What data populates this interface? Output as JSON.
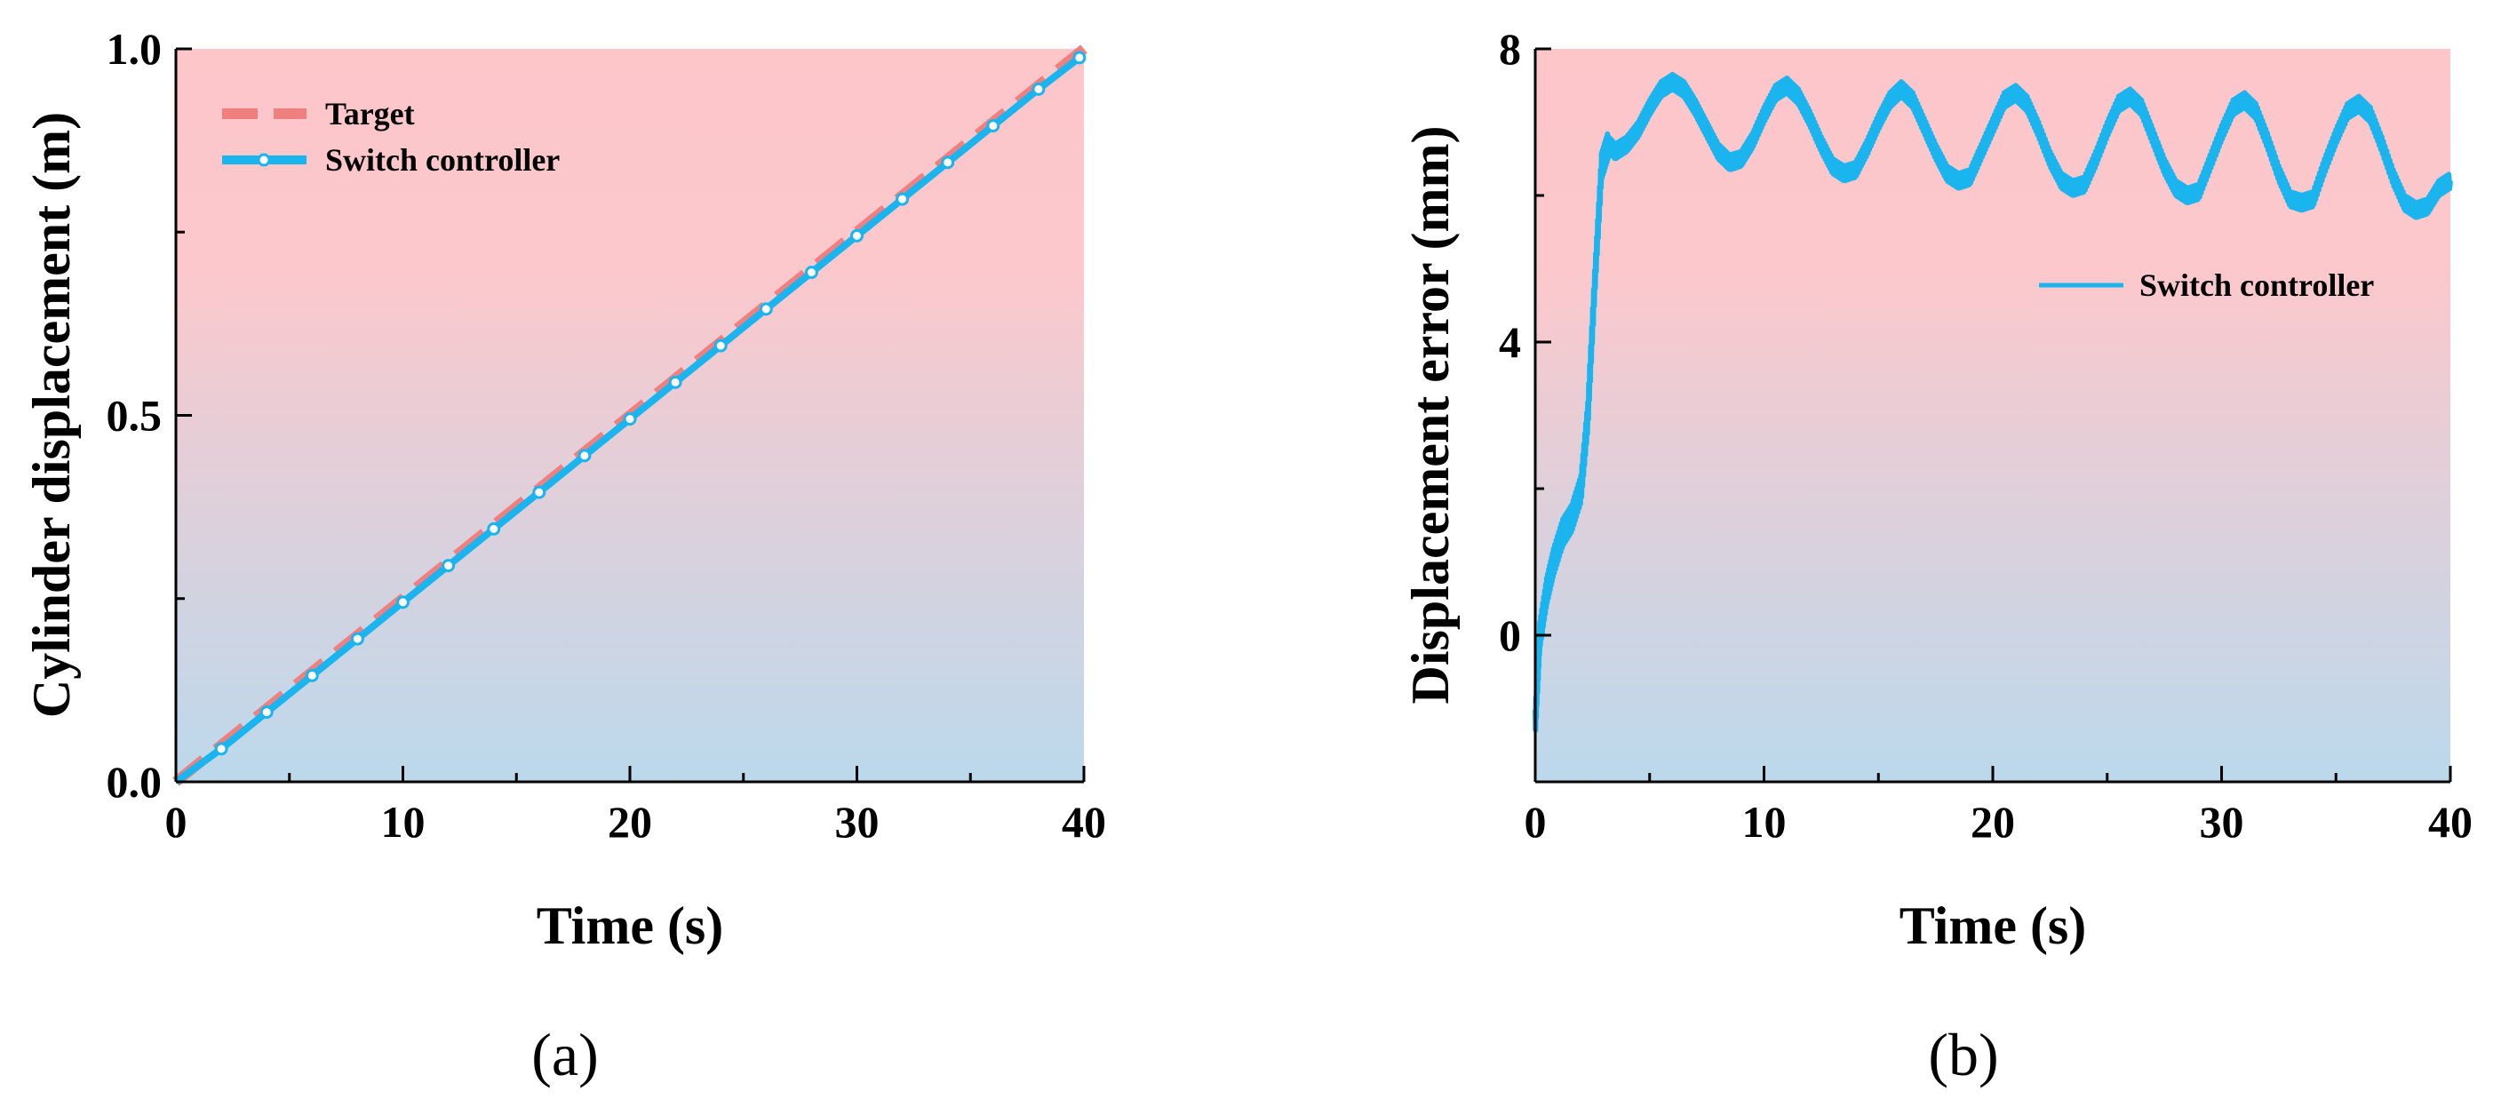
{
  "chart_data": [
    {
      "type": "line",
      "panel_label": "(a)",
      "xlabel": "Time (s)",
      "ylabel": "Cylinder displacement (m)",
      "xlim": [
        0,
        40
      ],
      "ylim": [
        0,
        1.0
      ],
      "x_ticks": [
        0,
        10,
        20,
        30,
        40
      ],
      "y_ticks": [
        0.0,
        0.5,
        1.0
      ],
      "x_tick_labels": [
        "0",
        "10",
        "20",
        "30",
        "40"
      ],
      "y_tick_labels": [
        "0.0",
        "0.5",
        "1.0"
      ],
      "grid": false,
      "legend_position": "top-left",
      "background_gradient": [
        "#fdc6c9",
        "#bbd9ec"
      ],
      "series": [
        {
          "name": "Target",
          "color": "#f08080",
          "style": "dashed",
          "x": [
            0,
            40
          ],
          "y": [
            0.0,
            1.0
          ]
        },
        {
          "name": "Switch controller",
          "color": "#1ab4ef",
          "style": "solid-markers",
          "x": [
            0,
            2,
            4,
            6,
            8,
            10,
            12,
            14,
            16,
            18,
            20,
            22,
            24,
            26,
            28,
            30,
            32,
            34,
            36,
            38,
            39.8
          ],
          "y": [
            0.0,
            0.045,
            0.095,
            0.145,
            0.195,
            0.245,
            0.295,
            0.345,
            0.395,
            0.445,
            0.495,
            0.545,
            0.595,
            0.645,
            0.695,
            0.745,
            0.795,
            0.845,
            0.895,
            0.945,
            0.988
          ]
        }
      ]
    },
    {
      "type": "line",
      "panel_label": "(b)",
      "xlabel": "Time (s)",
      "ylabel": "Displacement error (mm)",
      "xlim": [
        0,
        40
      ],
      "ylim": [
        -2,
        8
      ],
      "x_ticks": [
        0,
        10,
        20,
        30,
        40
      ],
      "y_ticks": [
        0,
        4,
        8
      ],
      "x_tick_labels": [
        "0",
        "10",
        "20",
        "30",
        "40"
      ],
      "y_tick_labels": [
        "0",
        "4",
        "8"
      ],
      "grid": false,
      "legend_position": "right",
      "background_gradient": [
        "#fdc6c9",
        "#bbd9ec"
      ],
      "series": [
        {
          "name": "Switch controller",
          "color": "#1ab4ef",
          "style": "solid",
          "x": [
            0,
            0.2,
            0.5,
            0.8,
            1.2,
            1.6,
            2.0,
            2.3,
            2.6,
            2.9,
            3.2,
            3.5,
            4.0,
            4.5,
            5.0,
            5.5,
            6.0,
            6.5,
            7.0,
            7.5,
            8.0,
            8.5,
            9.0,
            9.5,
            10.0,
            10.5,
            11.0,
            11.5,
            12.0,
            12.5,
            13.0,
            13.5,
            14.0,
            14.5,
            15.0,
            15.5,
            16.0,
            16.5,
            17.0,
            17.5,
            18.0,
            18.5,
            19.0,
            19.5,
            20.0,
            20.5,
            21.0,
            21.5,
            22.0,
            22.5,
            23.0,
            23.5,
            24.0,
            24.5,
            25.0,
            25.5,
            26.0,
            26.5,
            27.0,
            27.5,
            28.0,
            28.5,
            29.0,
            29.5,
            30.0,
            30.5,
            31.0,
            31.5,
            32.0,
            32.5,
            33.0,
            33.5,
            34.0,
            34.5,
            35.0,
            35.5,
            36.0,
            36.5,
            37.0,
            37.5,
            38.0,
            38.5,
            39.0,
            39.5,
            40.0
          ],
          "y": [
            -1.2,
            0.0,
            0.6,
            1.0,
            1.4,
            1.6,
            2.0,
            3.0,
            4.8,
            6.4,
            6.7,
            6.6,
            6.7,
            6.9,
            7.2,
            7.45,
            7.55,
            7.45,
            7.2,
            6.9,
            6.6,
            6.45,
            6.5,
            6.75,
            7.1,
            7.4,
            7.5,
            7.35,
            7.05,
            6.7,
            6.4,
            6.3,
            6.35,
            6.65,
            7.0,
            7.3,
            7.45,
            7.3,
            6.95,
            6.6,
            6.3,
            6.2,
            6.25,
            6.6,
            6.95,
            7.3,
            7.4,
            7.25,
            6.9,
            6.5,
            6.2,
            6.1,
            6.15,
            6.5,
            6.9,
            7.25,
            7.35,
            7.2,
            6.8,
            6.4,
            6.1,
            6.0,
            6.05,
            6.45,
            6.85,
            7.2,
            7.3,
            7.15,
            6.75,
            6.3,
            5.95,
            5.9,
            5.95,
            6.4,
            6.8,
            7.15,
            7.25,
            7.1,
            6.7,
            6.25,
            5.9,
            5.8,
            5.85,
            6.1,
            6.2
          ]
        }
      ]
    }
  ]
}
